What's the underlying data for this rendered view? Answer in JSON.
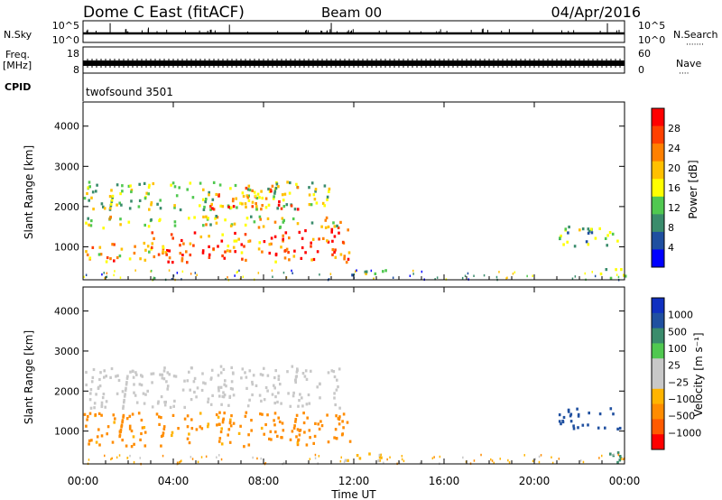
{
  "header": {
    "station": "Dome C East (fitACF)",
    "beam": "Beam 00",
    "date": "04/Apr/2016"
  },
  "panels": {
    "nsky": {
      "label": "N.Sky",
      "y_ticks": [
        "10^5",
        "10^0"
      ],
      "right_ticks": [
        "10^5",
        "10^0"
      ],
      "right_label": "N.Search",
      "right_dots": "·······"
    },
    "freq": {
      "label_line1": "Freq.",
      "label_line2": "[MHz]",
      "y_ticks": [
        "18",
        "8"
      ],
      "right_ticks": [
        "60",
        "0"
      ],
      "right_label": "Nave",
      "right_dots": "····"
    },
    "cpid": {
      "label": "CPID",
      "value": "twofsound 3501"
    }
  },
  "colors": {
    "power": [
      "#0000ff",
      "#1f4fa0",
      "#3a8c6c",
      "#50c850",
      "#ffff00",
      "#ffc000",
      "#ff8000",
      "#ff4000",
      "#ff0000"
    ],
    "velocity": [
      "#ff0000",
      "#ff5a00",
      "#ff8c00",
      "#ffb400",
      "#c8c8c8",
      "#c8c8c8",
      "#50c850",
      "#3a8c6c",
      "#2050a0",
      "#1030c0"
    ]
  },
  "chart_data": [
    {
      "type": "heatmap",
      "name": "power",
      "ylabel": "Slant Range [km]",
      "y_ticks": [
        1000,
        2000,
        3000,
        4000
      ],
      "ylim": [
        180,
        4600
      ],
      "xlim": [
        0,
        24
      ],
      "colorbar": {
        "label": "Power [dB]",
        "ticks": [
          "28",
          "24",
          "20",
          "16",
          "12",
          "8",
          "4"
        ],
        "range": [
          0,
          32
        ]
      },
      "regions": [
        {
          "t0": 0.0,
          "t1": 3.0,
          "r0": 650,
          "r1": 1150,
          "value": 22
        },
        {
          "t0": 3.0,
          "t1": 8.5,
          "r0": 650,
          "r1": 1400,
          "value": 26
        },
        {
          "t0": 8.5,
          "t1": 11.8,
          "r0": 650,
          "r1": 1550,
          "value": 28
        },
        {
          "t0": 0.0,
          "t1": 11.5,
          "r0": 1500,
          "r1": 1800,
          "value": 16
        },
        {
          "t0": 0.0,
          "t1": 11.0,
          "r0": 1950,
          "r1": 2650,
          "value": 14
        },
        {
          "t0": 5.5,
          "t1": 9.5,
          "r0": 1950,
          "r1": 2550,
          "value": 24
        },
        {
          "t0": 11.5,
          "t1": 13.5,
          "r0": 250,
          "r1": 450,
          "value": 12
        },
        {
          "t0": 21.0,
          "t1": 23.8,
          "r0": 1050,
          "r1": 1600,
          "value": 12
        },
        {
          "t0": 22.5,
          "t1": 24.0,
          "r0": 250,
          "r1": 500,
          "value": 14
        }
      ]
    },
    {
      "type": "heatmap",
      "name": "velocity",
      "ylabel": "Slant Range [km]",
      "y_ticks": [
        1000,
        2000,
        3000,
        4000
      ],
      "ylim": [
        180,
        4600
      ],
      "xlim": [
        0,
        24
      ],
      "colorbar": {
        "label": "Velocity [m s⁻¹]",
        "ticks": [
          "1000",
          "500",
          "100",
          "25",
          "−25",
          "−100",
          "−500",
          "−1000"
        ]
      },
      "regions": [
        {
          "t0": 0.0,
          "t1": 11.8,
          "r0": 650,
          "r1": 1500,
          "value": -300
        },
        {
          "t0": 0.0,
          "t1": 11.5,
          "r0": 1600,
          "r1": 2650,
          "value": 0
        },
        {
          "t0": 11.5,
          "t1": 13.5,
          "r0": 250,
          "r1": 500,
          "value": -100
        },
        {
          "t0": 21.0,
          "t1": 23.8,
          "r0": 1050,
          "r1": 1600,
          "value": 400
        },
        {
          "t0": 22.5,
          "t1": 24.0,
          "r0": 250,
          "r1": 500,
          "value": 200
        }
      ]
    }
  ],
  "x_axis": {
    "label": "Time UT",
    "ticks": [
      "00:00",
      "04:00",
      "08:00",
      "12:00",
      "16:00",
      "20:00",
      "00:00"
    ],
    "tick_hours": [
      0,
      4,
      8,
      12,
      16,
      20,
      24
    ]
  }
}
